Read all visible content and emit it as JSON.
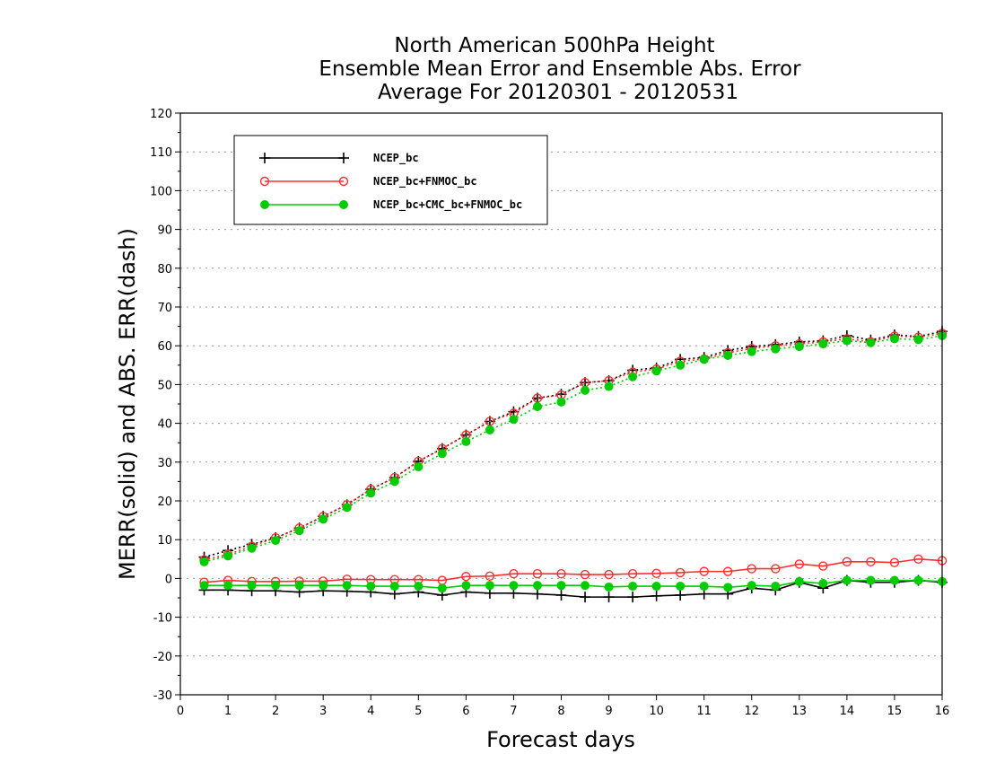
{
  "chart_data": {
    "type": "line",
    "title": [
      "North American 500hPa Height",
      "Ensemble Mean Error and Ensemble Abs. Error",
      "Average For 20120301 - 20120531"
    ],
    "xlabel": "Forecast days",
    "ylabel": "MERR(solid) and ABS. ERR(dash)",
    "xlim": [
      0,
      16
    ],
    "ylim": [
      -30,
      120
    ],
    "xticks": [
      0,
      1,
      2,
      3,
      4,
      5,
      6,
      7,
      8,
      9,
      10,
      11,
      12,
      13,
      14,
      15,
      16
    ],
    "yticks": [
      -30,
      -20,
      -10,
      0,
      10,
      20,
      30,
      40,
      50,
      60,
      70,
      80,
      90,
      100,
      110,
      120
    ],
    "grid": "horizontal dotted",
    "legend_position": "top-left",
    "x": [
      0.5,
      1,
      1.5,
      2,
      2.5,
      3,
      3.5,
      4,
      4.5,
      5,
      5.5,
      6,
      6.5,
      7,
      7.5,
      8,
      8.5,
      9,
      9.5,
      10,
      10.5,
      11,
      11.5,
      12,
      12.5,
      13,
      13.5,
      14,
      14.5,
      15,
      15.5,
      16
    ],
    "series": [
      {
        "name": "NCEP_bc",
        "color": "#000000",
        "marker": "plus",
        "merr": [
          -3,
          -3,
          -3.2,
          -3.2,
          -3.5,
          -3.2,
          -3.3,
          -3.5,
          -4,
          -3.5,
          -4.3,
          -3.5,
          -3.8,
          -3.8,
          -4,
          -4.3,
          -4.8,
          -4.8,
          -4.8,
          -4.5,
          -4.3,
          -4,
          -4,
          -2.5,
          -3,
          -1,
          -2.5,
          -0.5,
          -1,
          -1,
          -0.5,
          -1
        ],
        "abs_err": [
          5.5,
          7.2,
          8.8,
          10.5,
          13,
          16,
          19,
          23,
          26,
          30.2,
          33.5,
          37,
          40.5,
          43,
          46.5,
          47.5,
          50.5,
          51,
          53.7,
          54.3,
          56.5,
          57,
          58.8,
          59.8,
          60.3,
          61,
          61.3,
          62.6,
          61.5,
          62.8,
          62.4,
          63.7
        ]
      },
      {
        "name": "NCEP_bc+FNMOC_bc",
        "color": "#ff3030",
        "marker": "open-circle",
        "merr": [
          -1,
          -0.5,
          -0.8,
          -0.8,
          -0.7,
          -0.7,
          -0.2,
          -0.3,
          -0.3,
          -0.3,
          -0.5,
          0.5,
          0.6,
          1.2,
          1.2,
          1.2,
          1.0,
          1.0,
          1.2,
          1.3,
          1.5,
          1.8,
          1.8,
          2.5,
          2.5,
          3.7,
          3.2,
          4.3,
          4.3,
          4.1,
          5.0,
          4.6
        ],
        "abs_err": [
          4.8,
          6.2,
          8.3,
          10.5,
          13,
          16,
          19,
          23,
          26,
          30.2,
          33.5,
          37,
          40.5,
          42.6,
          46.5,
          47.3,
          50.5,
          51,
          53.2,
          54,
          56,
          56.6,
          58.2,
          59.3,
          60,
          60.5,
          61,
          61.8,
          61,
          62.5,
          62.2,
          63.2
        ]
      },
      {
        "name": "NCEP_bc+CMC_bc+FNMOC_bc",
        "color": "#00cc00",
        "marker": "filled-circle",
        "merr": [
          -1.8,
          -1.8,
          -1.8,
          -1.8,
          -1.8,
          -1.8,
          -1.8,
          -2,
          -2,
          -2,
          -2.5,
          -1.8,
          -1.8,
          -1.8,
          -1.8,
          -1.8,
          -1.8,
          -2.2,
          -2,
          -2,
          -2,
          -2,
          -2.3,
          -1.8,
          -2,
          -0.8,
          -1.3,
          -0.5,
          -0.5,
          -0.5,
          -0.5,
          -0.8
        ],
        "abs_err": [
          4.3,
          5.8,
          7.8,
          9.8,
          12.3,
          15.3,
          18.3,
          22,
          25,
          28.8,
          32.2,
          35.3,
          38.3,
          41,
          44.3,
          45.5,
          48.5,
          49.5,
          52,
          53.5,
          55,
          56.5,
          57.5,
          58.5,
          59.2,
          59.8,
          60.5,
          61.3,
          60.8,
          61.8,
          61.6,
          62.6
        ]
      }
    ]
  }
}
